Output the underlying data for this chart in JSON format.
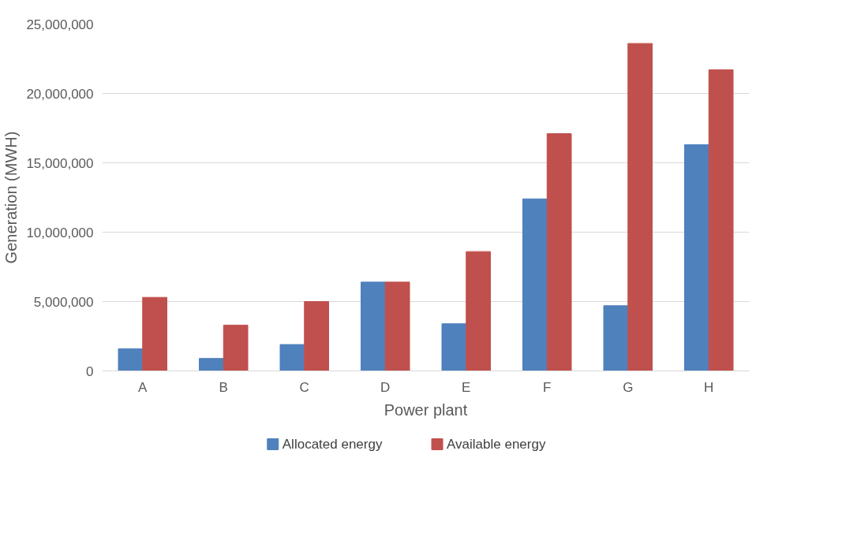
{
  "chart_data": {
    "type": "bar",
    "xlabel": "Power plant",
    "ylabel": "Generation (MWH)",
    "categories": [
      "A",
      "B",
      "C",
      "D",
      "E",
      "F",
      "G",
      "H"
    ],
    "series": [
      {
        "name": "Allocated energy",
        "color": "#4f81bd",
        "values": [
          1600000,
          900000,
          1900000,
          6400000,
          3400000,
          12400000,
          4700000,
          16300000
        ]
      },
      {
        "name": "Available energy",
        "color": "#c0504d",
        "values": [
          5300000,
          3300000,
          5000000,
          6400000,
          8600000,
          17100000,
          23600000,
          21700000
        ]
      }
    ],
    "ylim": [
      0,
      25000000
    ],
    "yticks": [
      {
        "value": 0,
        "label": "0"
      },
      {
        "value": 5000000,
        "label": "5,000,000"
      },
      {
        "value": 10000000,
        "label": "10,000,000"
      },
      {
        "value": 15000000,
        "label": "15,000,000"
      },
      {
        "value": 20000000,
        "label": "20,000,000"
      },
      {
        "value": 25000000,
        "label": "25,000,000"
      }
    ],
    "grid": "y",
    "legend": "bottom"
  }
}
